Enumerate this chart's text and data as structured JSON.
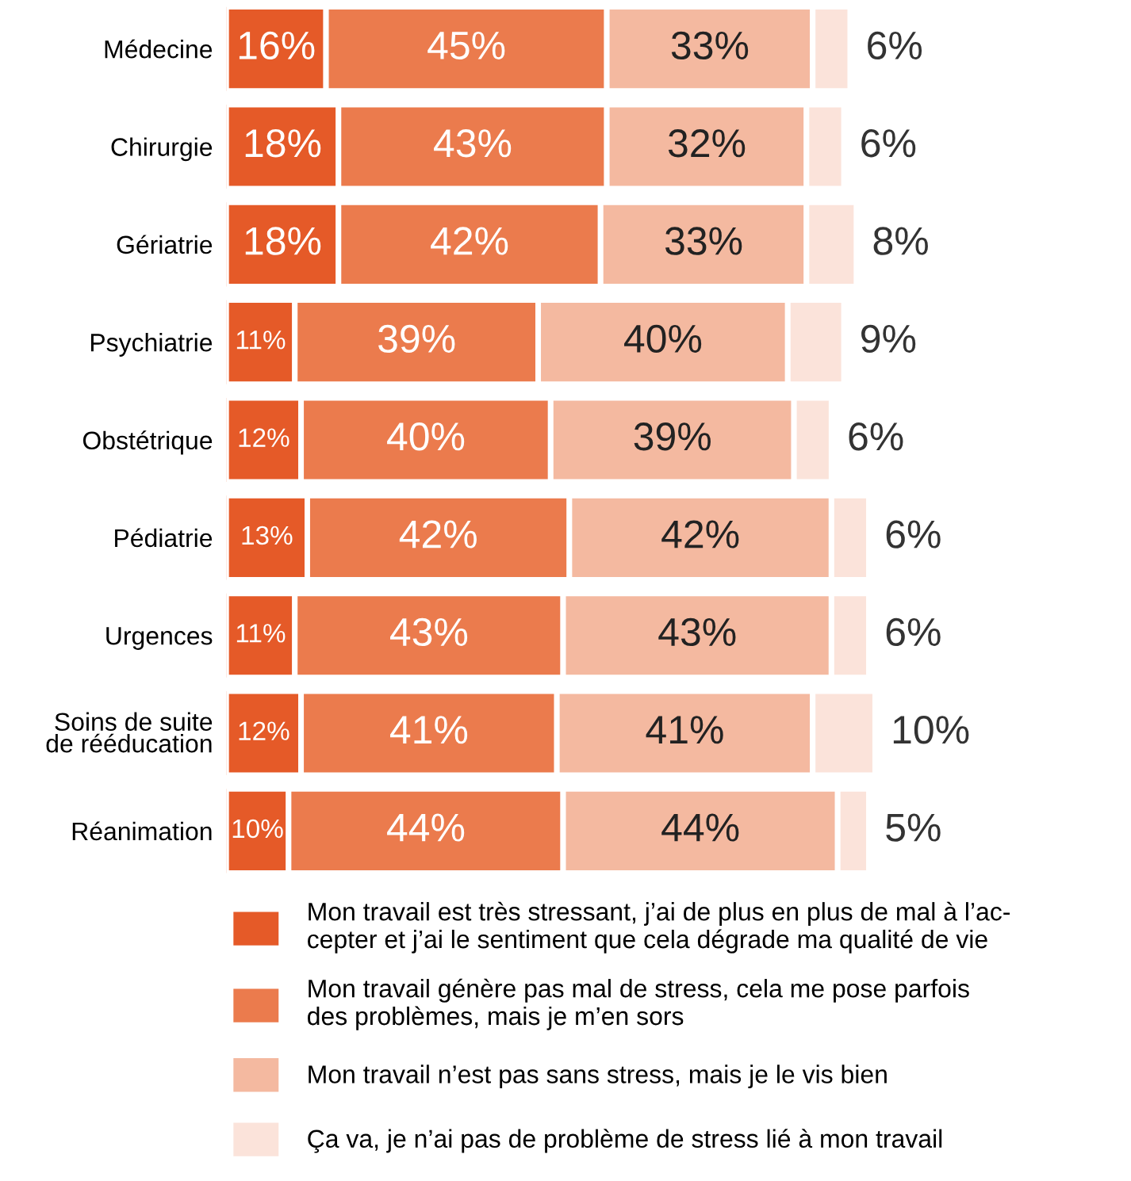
{
  "chart_data": {
    "type": "bar",
    "orientation": "horizontal",
    "stacked": true,
    "tick_labels": "y",
    "legend": "bottom",
    "categories": [
      "Médecine",
      "Chirurgie",
      "Gériatrie",
      "Psychiatrie",
      "Obstétrique",
      "Pédiatrie",
      "Urgences",
      "Soins de suite\nde rééducation",
      "Réanimation"
    ],
    "series": [
      {
        "name": "Mon travail est très stressant, j’ai de plus en plus de mal à l’ac-\ncepter et j’ai le sentiment que cela dégrade ma qualité de vie",
        "color": "#e55a28",
        "values": [
          16,
          18,
          18,
          11,
          12,
          13,
          11,
          12,
          10
        ],
        "value_labels": [
          "16%",
          "18%",
          "18%",
          "11%",
          "12%",
          "13%",
          "11%",
          "12%",
          "10%"
        ]
      },
      {
        "name": "Mon travail génère pas mal de stress, cela me pose parfois\ndes problèmes, mais je m’en sors",
        "color": "#eb7b4d",
        "values": [
          45,
          43,
          42,
          39,
          40,
          42,
          43,
          41,
          44
        ],
        "value_labels": [
          "45%",
          "43%",
          "42%",
          "39%",
          "40%",
          "42%",
          "43%",
          "41%",
          "44%"
        ]
      },
      {
        "name": "Mon travail n’est pas sans stress, mais je le vis bien",
        "color": "#f4b9a0",
        "values": [
          33,
          32,
          33,
          40,
          39,
          42,
          43,
          41,
          44
        ],
        "value_labels": [
          "33%",
          "32%",
          "33%",
          "40%",
          "39%",
          "42%",
          "43%",
          "41%",
          "44%"
        ]
      },
      {
        "name": "Ça va, je n’ai pas de problème de stress lié à mon travail",
        "color": "#fbe3da",
        "values": [
          6,
          6,
          8,
          9,
          6,
          6,
          6,
          10,
          5
        ],
        "value_labels": [
          "6%",
          "6%",
          "8%",
          "9%",
          "6%",
          "6%",
          "6%",
          "10%",
          "5%"
        ]
      }
    ]
  }
}
